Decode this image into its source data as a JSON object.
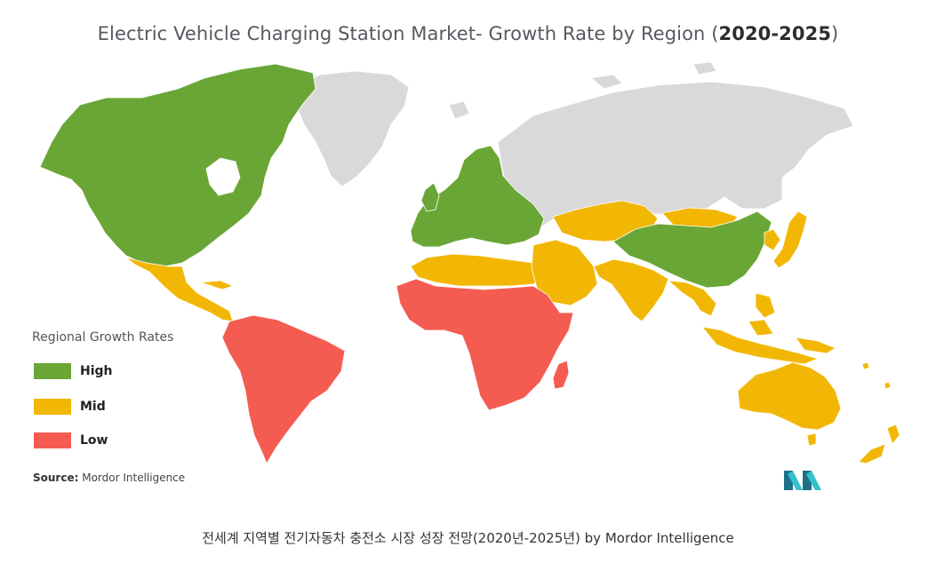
{
  "title": {
    "main": "Electric Vehicle Charging Station Market- Growth Rate by Region (",
    "years": "2020-2025",
    "close": ")"
  },
  "colors": {
    "high": "#6aa636",
    "mid": "#f2b705",
    "low": "#f45c52",
    "no_data": "#d9d9d9",
    "logo_dark": "#1f6f8b",
    "logo_light": "#35c1c9"
  },
  "legend": {
    "title": "Regional Growth Rates",
    "items": [
      {
        "label": "High",
        "color": "#6aa636"
      },
      {
        "label": "Mid",
        "color": "#f2b705"
      },
      {
        "label": "Low",
        "color": "#f45c52"
      }
    ]
  },
  "source": {
    "prefix": "Source:",
    "name": " Mordor Intelligence"
  },
  "regions": [
    {
      "name": "North America",
      "rate": "High"
    },
    {
      "name": "Europe",
      "rate": "High"
    },
    {
      "name": "China",
      "rate": "High"
    },
    {
      "name": "Central America & Mexico",
      "rate": "Mid"
    },
    {
      "name": "North Africa",
      "rate": "Mid"
    },
    {
      "name": "Middle East",
      "rate": "Mid"
    },
    {
      "name": "Central Asia",
      "rate": "Mid"
    },
    {
      "name": "India & South Asia",
      "rate": "Mid"
    },
    {
      "name": "Southeast Asia",
      "rate": "Mid"
    },
    {
      "name": "Japan & Korea",
      "rate": "Mid"
    },
    {
      "name": "Australia",
      "rate": "Mid"
    },
    {
      "name": "New Zealand",
      "rate": "Mid"
    },
    {
      "name": "South America",
      "rate": "Low"
    },
    {
      "name": "Sub-Saharan Africa",
      "rate": "Low"
    },
    {
      "name": "Madagascar",
      "rate": "Low"
    },
    {
      "name": "Greenland",
      "rate": "No data"
    },
    {
      "name": "Russia",
      "rate": "No data"
    }
  ],
  "caption": "전세계 지역별 전기자동차 충전소 시장 성장 전망(2020년-2025년) by Mordor Intelligence"
}
